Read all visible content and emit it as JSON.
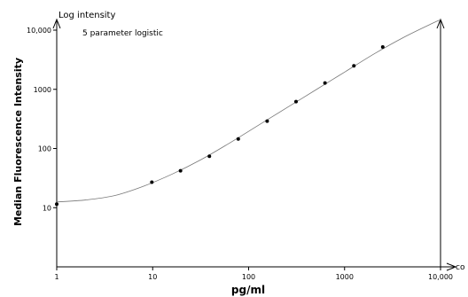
{
  "chart_data": {
    "type": "scatter",
    "title": "",
    "xlabel": "pg/ml",
    "ylabel": "Median Fluorescence Intensity",
    "x_scale": "log",
    "y_scale": "log",
    "xlim": [
      1,
      10000
    ],
    "ylim": [
      1,
      10000
    ],
    "x_ticks": [
      "1",
      "10",
      "100",
      "1000",
      "10,000"
    ],
    "y_ticks": [
      "10",
      "100",
      "1000",
      "10,000"
    ],
    "y_axis_caption": "Log intensity",
    "x_axis_caption": "co",
    "annotations": [
      "5 parameter logistic"
    ],
    "grid": false,
    "series": [
      {
        "values": [
          {
            "x": 1,
            "y": 11.5
          },
          {
            "x": 9.8,
            "y": 27
          },
          {
            "x": 19.5,
            "y": 42
          },
          {
            "x": 39,
            "y": 74
          },
          {
            "x": 78,
            "y": 145
          },
          {
            "x": 156,
            "y": 290
          },
          {
            "x": 312,
            "y": 620
          },
          {
            "x": 625,
            "y": 1280
          },
          {
            "x": 1250,
            "y": 2500
          },
          {
            "x": 2500,
            "y": 5200
          }
        ]
      }
    ],
    "fit_curve": {
      "model": "5 parameter logistic",
      "points": [
        {
          "x": 1,
          "y": 12.5
        },
        {
          "x": 2,
          "y": 13.5
        },
        {
          "x": 4,
          "y": 16
        },
        {
          "x": 8,
          "y": 23
        },
        {
          "x": 16,
          "y": 37
        },
        {
          "x": 32,
          "y": 65
        },
        {
          "x": 64,
          "y": 125
        },
        {
          "x": 128,
          "y": 250
        },
        {
          "x": 256,
          "y": 500
        },
        {
          "x": 512,
          "y": 1000
        },
        {
          "x": 1024,
          "y": 2000
        },
        {
          "x": 2048,
          "y": 4000
        },
        {
          "x": 4096,
          "y": 7500
        },
        {
          "x": 8192,
          "y": 13000
        },
        {
          "x": 10000,
          "y": 15000
        }
      ]
    }
  }
}
